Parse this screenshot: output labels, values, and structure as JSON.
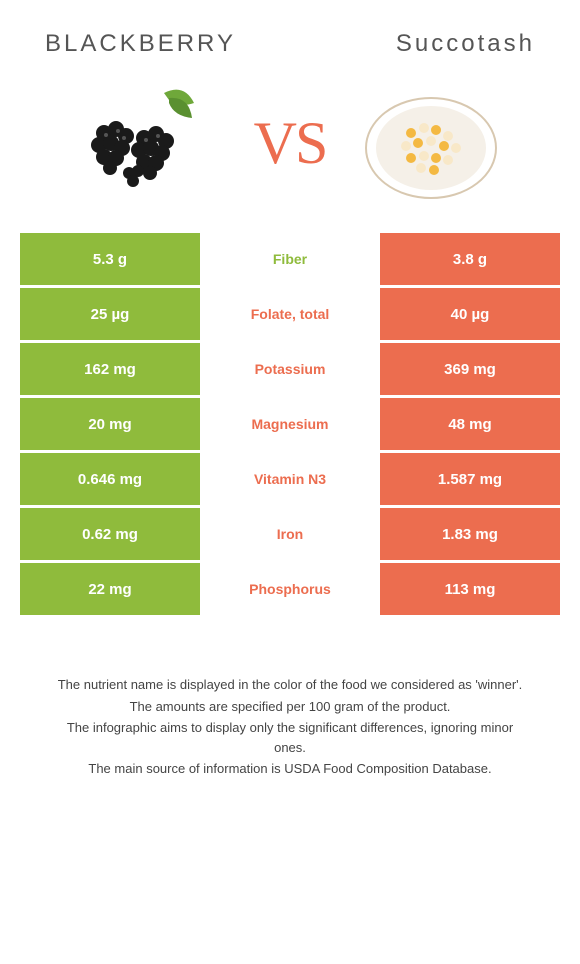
{
  "header": {
    "left_title": "BLACKBERRY",
    "right_title": "Succotash"
  },
  "vs_label": "VS",
  "colors": {
    "left": "#8fbb3c",
    "right": "#ec6d4f",
    "mid_left_text": "#8fbb3c",
    "mid_right_text": "#ec6d4f"
  },
  "rows": [
    {
      "left": "5.3 g",
      "label": "Fiber",
      "right": "3.8 g",
      "winner": "left"
    },
    {
      "left": "25 µg",
      "label": "Folate, total",
      "right": "40 µg",
      "winner": "right"
    },
    {
      "left": "162 mg",
      "label": "Potassium",
      "right": "369 mg",
      "winner": "right"
    },
    {
      "left": "20 mg",
      "label": "Magnesium",
      "right": "48 mg",
      "winner": "right"
    },
    {
      "left": "0.646 mg",
      "label": "Vitamin N3",
      "right": "1.587 mg",
      "winner": "right"
    },
    {
      "left": "0.62 mg",
      "label": "Iron",
      "right": "1.83 mg",
      "winner": "right"
    },
    {
      "left": "22 mg",
      "label": "Phosphorus",
      "right": "113 mg",
      "winner": "right"
    }
  ],
  "footer": {
    "line1": "The nutrient name is displayed in the color of the food we considered as 'winner'.",
    "line2": "The amounts are specified per 100 gram of the product.",
    "line3": "The infographic aims to display only the significant differences, ignoring minor ones.",
    "line4": "The main source of information is USDA Food Composition Database."
  }
}
